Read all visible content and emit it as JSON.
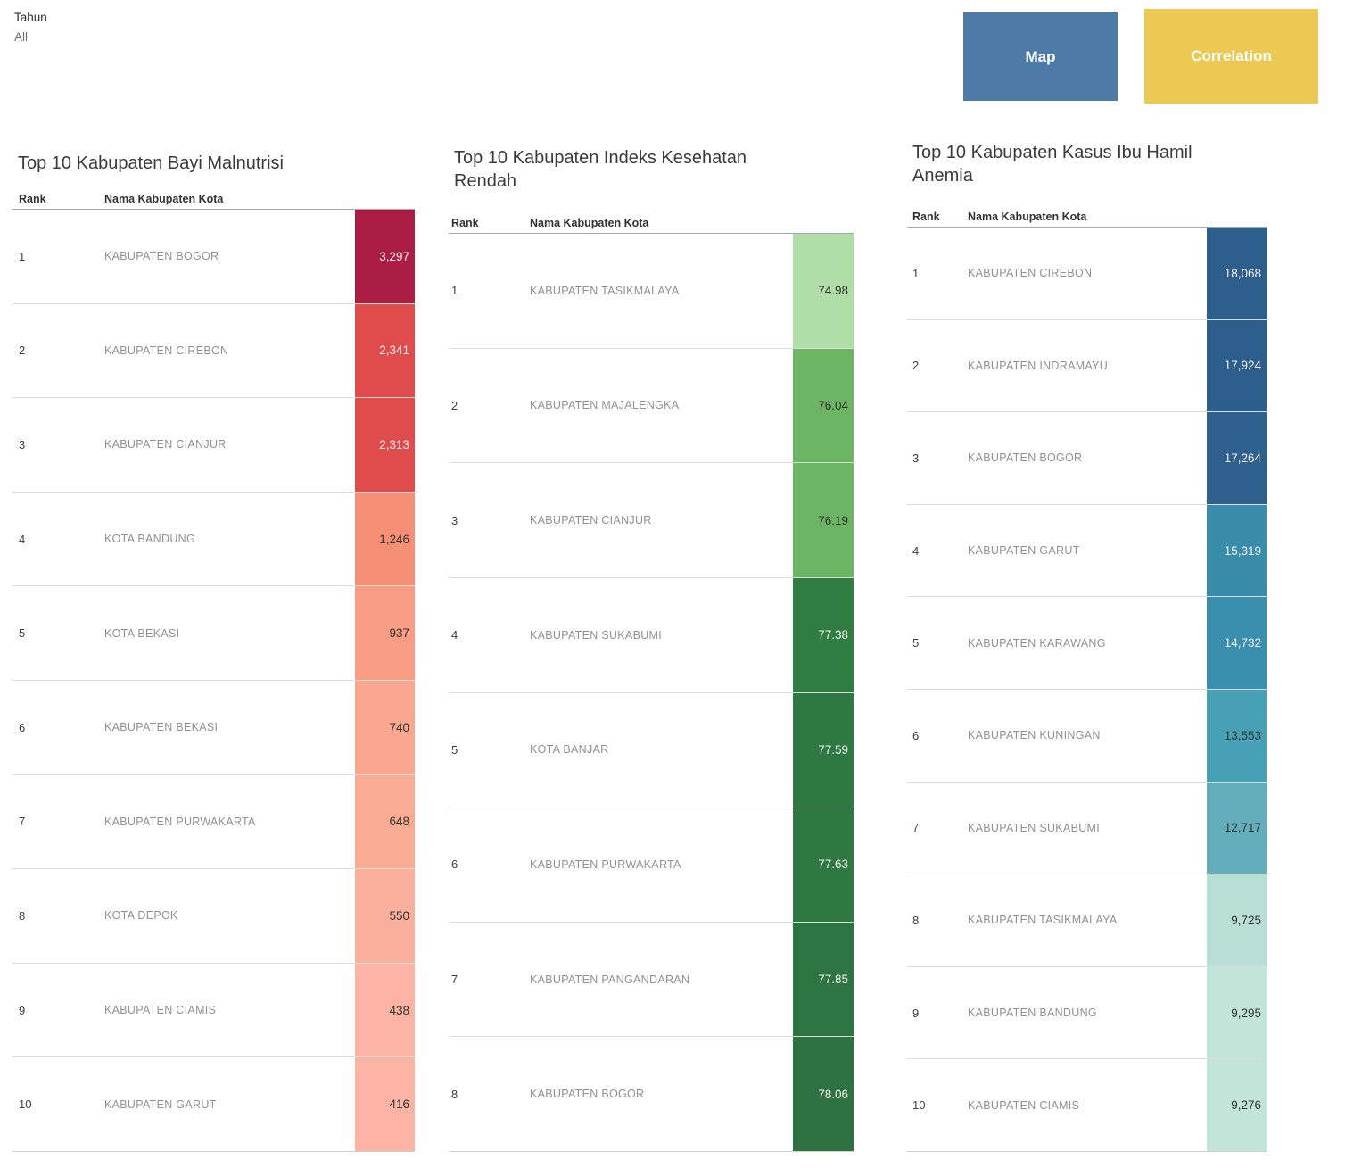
{
  "filter": {
    "label": "Tahun",
    "value": "All"
  },
  "nav_buttons": [
    {
      "label": "Map",
      "color": "#4d7aa7"
    },
    {
      "label": "Correlation",
      "color": "#ecc952"
    }
  ],
  "chart_data": [
    {
      "type": "table",
      "title": "Top 10 Kabupaten Bayi Malnutrisi",
      "columns": [
        "Rank",
        "Nama Kabupaten Kota"
      ],
      "rows": [
        {
          "rank": "1",
          "name": "KABUPATEN BOGOR",
          "value": "3,297",
          "color": "#ab1e44",
          "light_text": true
        },
        {
          "rank": "2",
          "name": "KABUPATEN CIREBON",
          "value": "2,341",
          "color": "#e04b4b",
          "light_text": true
        },
        {
          "rank": "3",
          "name": "KABUPATEN CIANJUR",
          "value": "2,313",
          "color": "#e04b4b",
          "light_text": true
        },
        {
          "rank": "4",
          "name": "KOTA BANDUNG",
          "value": "1,246",
          "color": "#f58f75",
          "light_text": false
        },
        {
          "rank": "5",
          "name": "KOTA BEKASI",
          "value": "937",
          "color": "#f89c84",
          "light_text": false
        },
        {
          "rank": "6",
          "name": "KABUPATEN BEKASI",
          "value": "740",
          "color": "#f9a78f",
          "light_text": false
        },
        {
          "rank": "7",
          "name": "KABUPATEN PURWAKARTA",
          "value": "648",
          "color": "#f9ab94",
          "light_text": false
        },
        {
          "rank": "8",
          "name": "KOTA DEPOK",
          "value": "550",
          "color": "#fbaf9d",
          "light_text": false
        },
        {
          "rank": "9",
          "name": "KABUPATEN CIAMIS",
          "value": "438",
          "color": "#fbb3a3",
          "light_text": false
        },
        {
          "rank": "10",
          "name": "KABUPATEN GARUT",
          "value": "416",
          "color": "#fbb4a4",
          "light_text": false
        }
      ]
    },
    {
      "type": "table",
      "title": "Top 10 Kabupaten Indeks Kesehatan Rendah",
      "columns": [
        "Rank",
        "Nama Kabupaten Kota"
      ],
      "rows": [
        {
          "rank": "1",
          "name": "KABUPATEN TASIKMALAYA",
          "value": "74.98",
          "color": "#b0dea7",
          "light_text": false
        },
        {
          "rank": "2",
          "name": "KABUPATEN MAJALENGKA",
          "value": "76.04",
          "color": "#6cb563",
          "light_text": false
        },
        {
          "rank": "3",
          "name": "KABUPATEN CIANJUR",
          "value": "76.19",
          "color": "#6cb563",
          "light_text": false
        },
        {
          "rank": "4",
          "name": "KABUPATEN SUKABUMI",
          "value": "77.38",
          "color": "#2f7d41",
          "light_text": true
        },
        {
          "rank": "5",
          "name": "KOTA BANJAR",
          "value": "77.59",
          "color": "#2e7941",
          "light_text": true
        },
        {
          "rank": "6",
          "name": "KABUPATEN PURWAKARTA",
          "value": "77.63",
          "color": "#2e7941",
          "light_text": true
        },
        {
          "rank": "7",
          "name": "KABUPATEN PANGANDARAN",
          "value": "77.85",
          "color": "#2d7540",
          "light_text": true
        },
        {
          "rank": "8",
          "name": "KABUPATEN BOGOR",
          "value": "78.06",
          "color": "#2d7240",
          "light_text": true
        }
      ]
    },
    {
      "type": "table",
      "title": "Top 10 Kabupaten  Kasus Ibu Hamil Anemia",
      "columns": [
        "Rank",
        "Nama Kabupaten Kota"
      ],
      "rows": [
        {
          "rank": "1",
          "name": "KABUPATEN CIREBON",
          "value": "18,068",
          "color": "#2d5f8c",
          "light_text": true
        },
        {
          "rank": "2",
          "name": "KABUPATEN INDRAMAYU",
          "value": "17,924",
          "color": "#2d5f8c",
          "light_text": true
        },
        {
          "rank": "3",
          "name": "KABUPATEN BOGOR",
          "value": "17,264",
          "color": "#2e618e",
          "light_text": true
        },
        {
          "rank": "4",
          "name": "KABUPATEN GARUT",
          "value": "15,319",
          "color": "#3a8cab",
          "light_text": true
        },
        {
          "rank": "5",
          "name": "KABUPATEN KARAWANG",
          "value": "14,732",
          "color": "#3a8fae",
          "light_text": true
        },
        {
          "rank": "6",
          "name": "KABUPATEN KUNINGAN",
          "value": "13,553",
          "color": "#46a1b4",
          "light_text": false
        },
        {
          "rank": "7",
          "name": "KABUPATEN SUKABUMI",
          "value": "12,717",
          "color": "#62aebb",
          "light_text": false
        },
        {
          "rank": "8",
          "name": "KABUPATEN TASIKMALAYA",
          "value": "9,725",
          "color": "#b9ded6",
          "light_text": false
        },
        {
          "rank": "9",
          "name": "KABUPATEN BANDUNG",
          "value": "9,295",
          "color": "#c2e5da",
          "light_text": false
        },
        {
          "rank": "10",
          "name": "KABUPATEN CIAMIS",
          "value": "9,276",
          "color": "#c2e5da",
          "light_text": false
        }
      ]
    }
  ]
}
